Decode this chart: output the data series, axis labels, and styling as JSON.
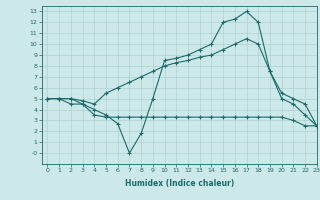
{
  "xlabel": "Humidex (Indice chaleur)",
  "xlim": [
    -0.5,
    23
  ],
  "ylim": [
    -1,
    13.5
  ],
  "xticks": [
    0,
    1,
    2,
    3,
    4,
    5,
    6,
    7,
    8,
    9,
    10,
    11,
    12,
    13,
    14,
    15,
    16,
    17,
    18,
    19,
    20,
    21,
    22,
    23
  ],
  "yticks": [
    0,
    1,
    2,
    3,
    4,
    5,
    6,
    7,
    8,
    9,
    10,
    11,
    12,
    13
  ],
  "ytick_labels": [
    "-0",
    "1",
    "2",
    "3",
    "4",
    "5",
    "6",
    "7",
    "8",
    "9",
    "10",
    "11",
    "12",
    "13"
  ],
  "bg_color": "#cde8e8",
  "line_color": "#1a6b6b",
  "grid_color": "#a8cccc",
  "line1_x": [
    0,
    1,
    2,
    3,
    4,
    5,
    6,
    7,
    8,
    9,
    10,
    11,
    12,
    13,
    14,
    15,
    16,
    17,
    18,
    19,
    20,
    21,
    22,
    23
  ],
  "line1_y": [
    5,
    5,
    5,
    4.5,
    4,
    3.5,
    2.7,
    0,
    1.8,
    5,
    8.5,
    8.7,
    9,
    9.5,
    10,
    12,
    12.3,
    13,
    12,
    7.5,
    5,
    4.5,
    3.5,
    2.5
  ],
  "line2_x": [
    0,
    1,
    2,
    3,
    4,
    5,
    6,
    7,
    8,
    9,
    10,
    11,
    12,
    13,
    14,
    15,
    16,
    17,
    18,
    19,
    20,
    21,
    22,
    23
  ],
  "line2_y": [
    5,
    5,
    4.5,
    4.5,
    3.5,
    3.3,
    3.3,
    3.3,
    3.3,
    3.3,
    3.3,
    3.3,
    3.3,
    3.3,
    3.3,
    3.3,
    3.3,
    3.3,
    3.3,
    3.3,
    3.3,
    3.0,
    2.5,
    2.5
  ],
  "line3_x": [
    0,
    1,
    2,
    3,
    4,
    5,
    6,
    7,
    8,
    9,
    10,
    11,
    12,
    13,
    14,
    15,
    16,
    17,
    18,
    19,
    20,
    21,
    22,
    23
  ],
  "line3_y": [
    5,
    5,
    5,
    4.8,
    4.5,
    5.5,
    6,
    6.5,
    7,
    7.5,
    8,
    8.3,
    8.5,
    8.8,
    9,
    9.5,
    10,
    10.5,
    10,
    7.5,
    5.5,
    5,
    4.5,
    2.5
  ]
}
